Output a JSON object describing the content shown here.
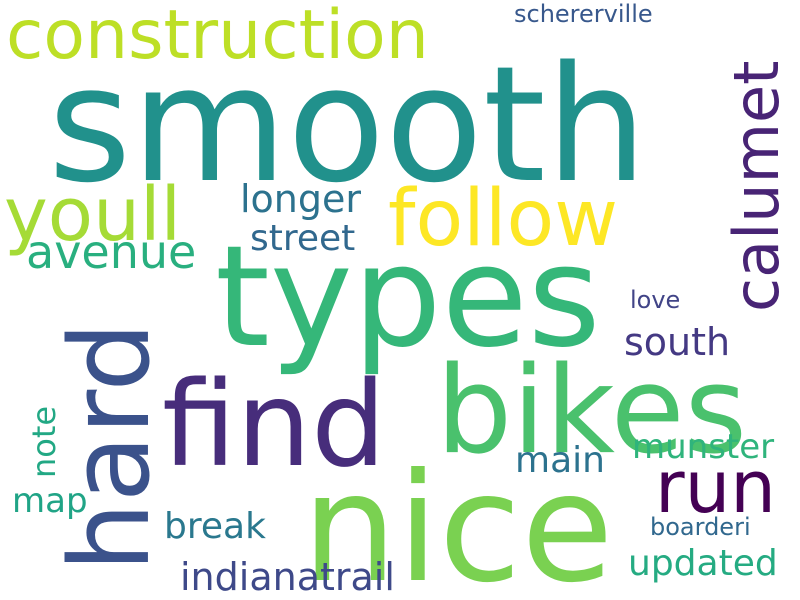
{
  "words": [
    {
      "id": "smooth",
      "text": "smooth",
      "color": "#21918c"
    },
    {
      "id": "types",
      "text": "types",
      "color": "#35b779"
    },
    {
      "id": "nice",
      "text": "nice",
      "color": "#7ad151"
    },
    {
      "id": "hard",
      "text": "hard",
      "color": "#3b528b"
    },
    {
      "id": "find",
      "text": "find",
      "color": "#472d7b"
    },
    {
      "id": "bikes",
      "text": "bikes",
      "color": "#4ac16d"
    },
    {
      "id": "construction",
      "text": "construction",
      "color": "#bddf26"
    },
    {
      "id": "follow",
      "text": "follow",
      "color": "#fde725"
    },
    {
      "id": "youll",
      "text": "youll",
      "color": "#a5db36"
    },
    {
      "id": "calumet",
      "text": "calumet",
      "color": "#482475"
    },
    {
      "id": "run",
      "text": "run",
      "color": "#440154"
    },
    {
      "id": "avenue",
      "text": "avenue",
      "color": "#29af7f"
    },
    {
      "id": "longer",
      "text": "longer",
      "color": "#2c728e"
    },
    {
      "id": "street",
      "text": "street",
      "color": "#31688e"
    },
    {
      "id": "south",
      "text": "south",
      "color": "#443983"
    },
    {
      "id": "munster",
      "text": "munster",
      "color": "#2fb47c"
    },
    {
      "id": "main",
      "text": "main",
      "color": "#2c728e"
    },
    {
      "id": "break",
      "text": "break",
      "color": "#2a788e"
    },
    {
      "id": "updated",
      "text": "updated",
      "color": "#25ab82"
    },
    {
      "id": "indianatrail",
      "text": "indianatrail",
      "color": "#3e4989"
    },
    {
      "id": "note",
      "text": "note",
      "color": "#22a884"
    },
    {
      "id": "map",
      "text": "map",
      "color": "#20a486"
    },
    {
      "id": "schererville",
      "text": "schererville",
      "color": "#38588c"
    },
    {
      "id": "love",
      "text": "love",
      "color": "#414487"
    },
    {
      "id": "boarderi",
      "text": "boarderi",
      "color": "#31688e"
    }
  ]
}
